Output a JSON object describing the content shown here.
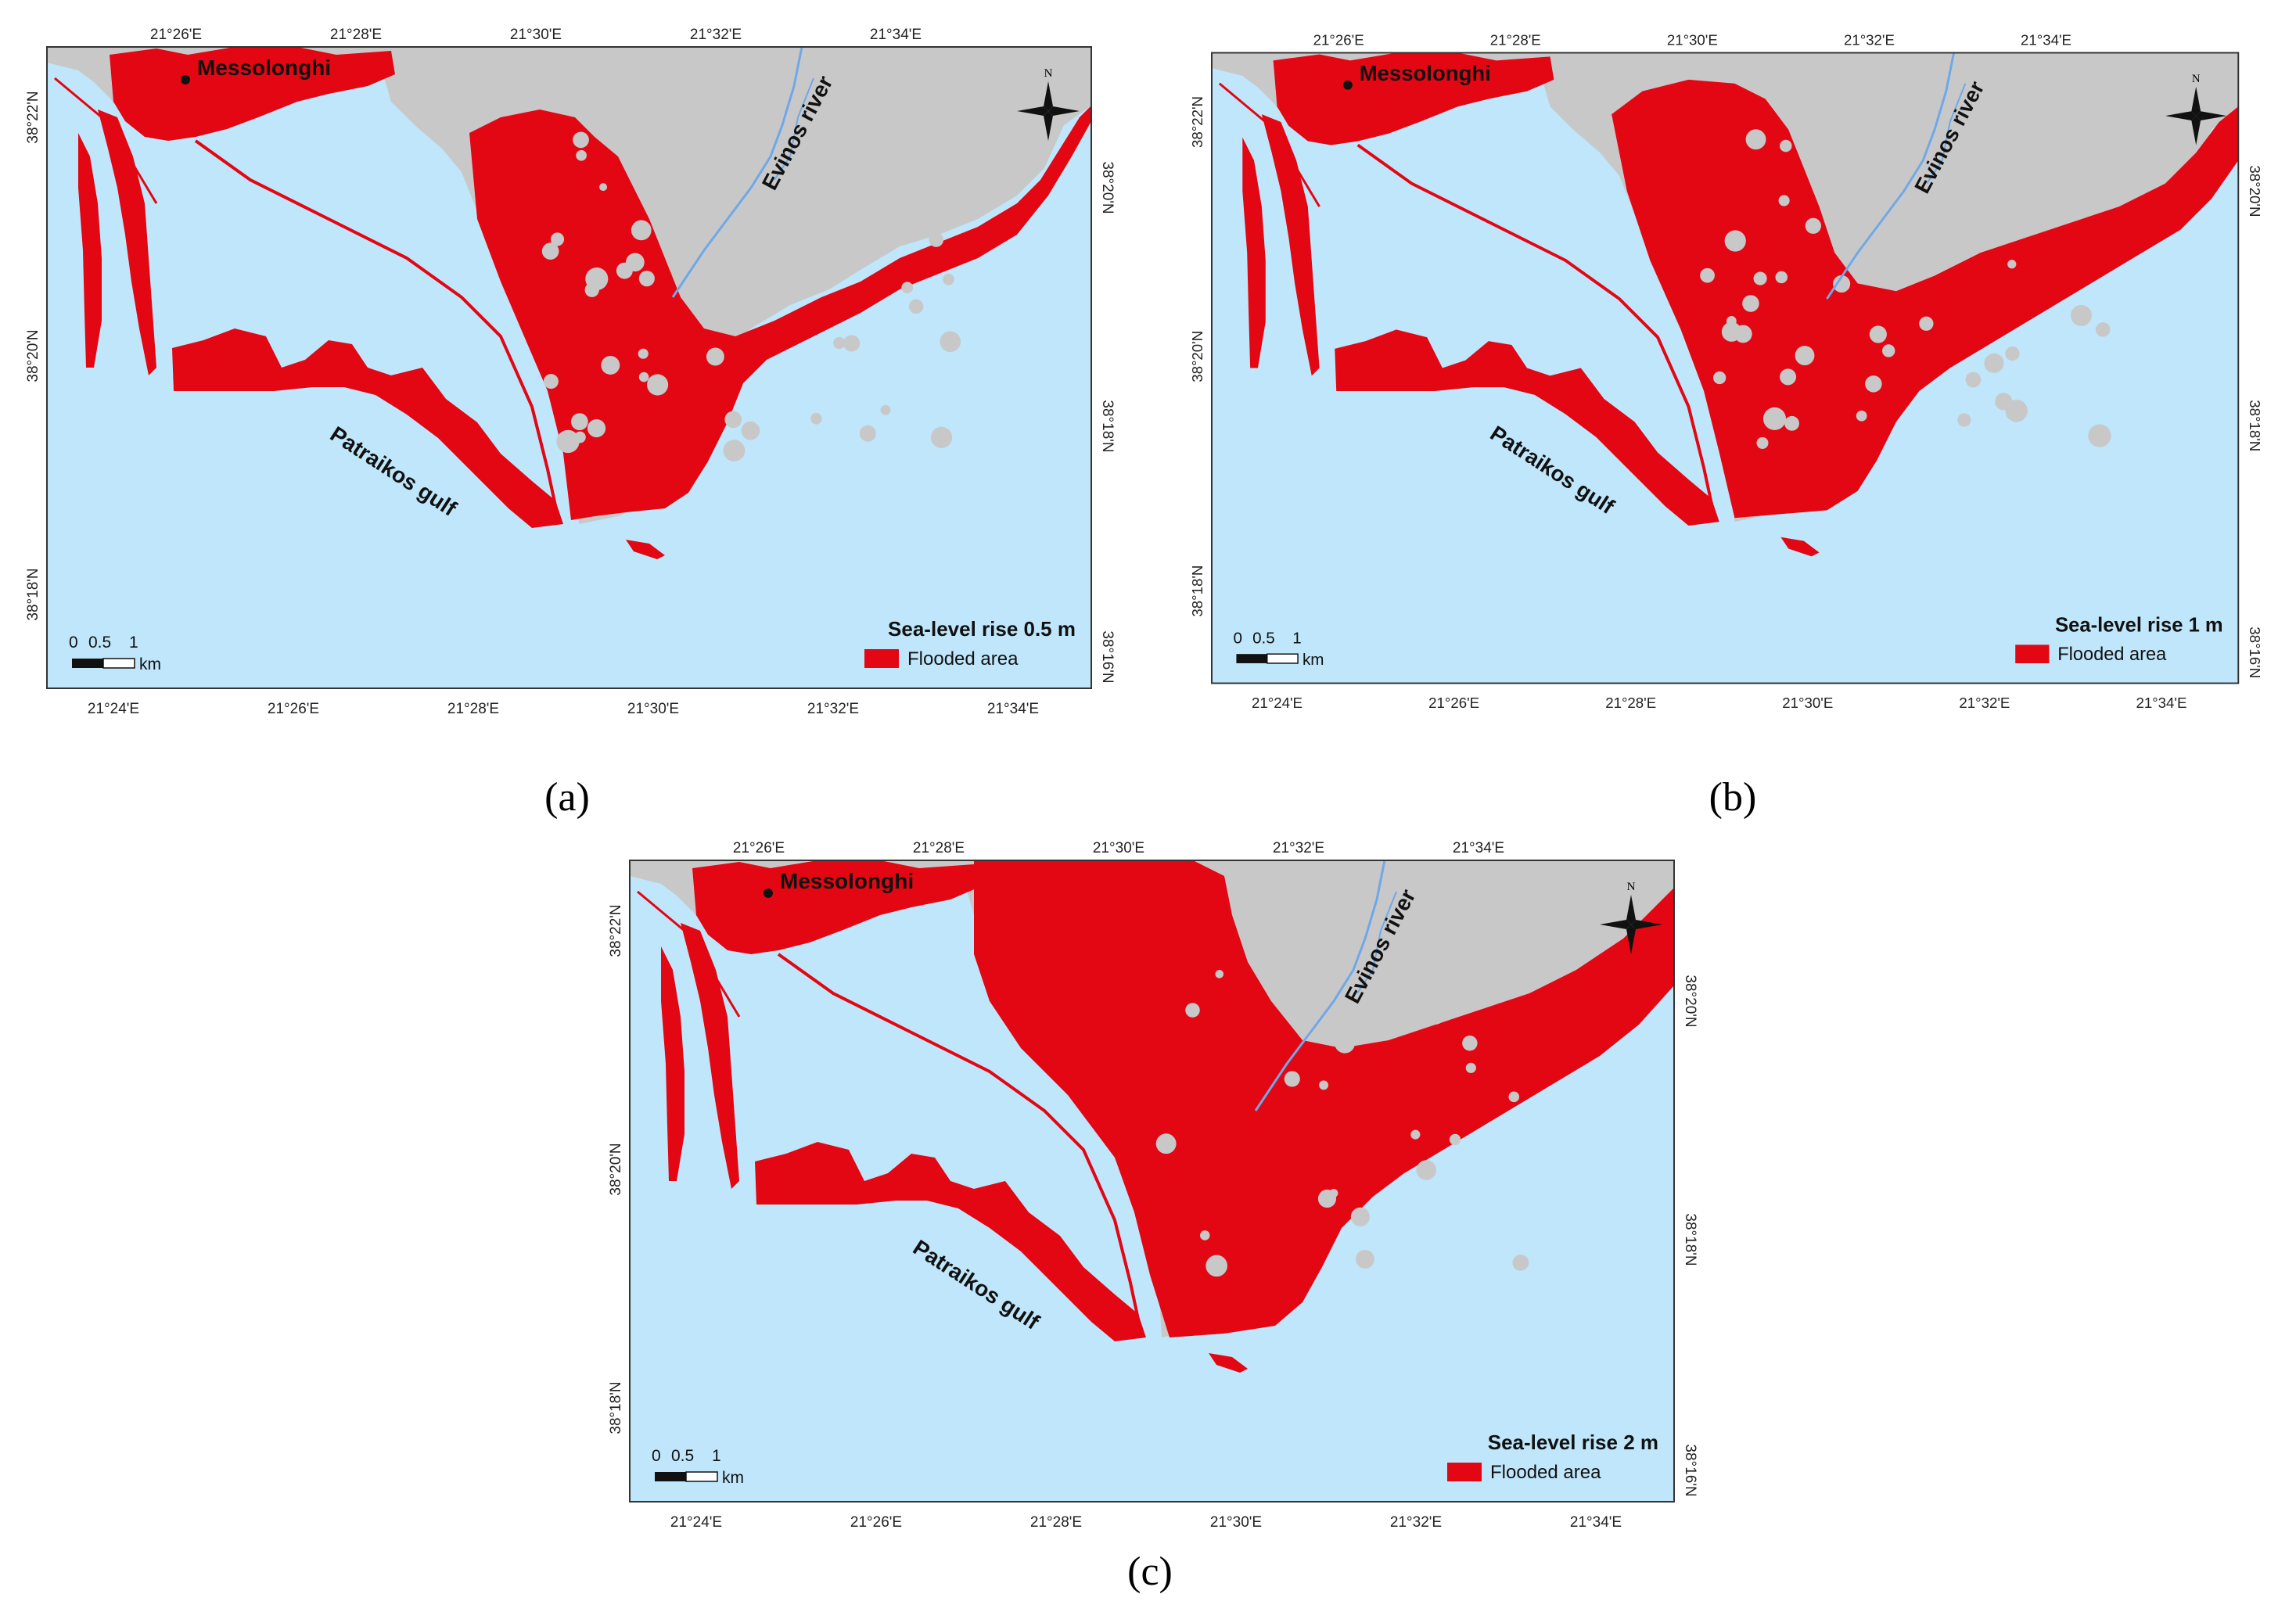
{
  "colors": {
    "sea": "#bfe6fa",
    "land": "#c8c8c8",
    "flooded": "#e30613",
    "river": "#6fa8e8",
    "frame": "#333333"
  },
  "labels": {
    "city": "Messolonghi",
    "river": "Evinos river",
    "gulf": "Patraikos gulf",
    "north": "N",
    "legend_item": "Flooded area",
    "scale_ticks": [
      "0",
      "0.5",
      "1"
    ],
    "scale_unit": "km"
  },
  "axis": {
    "top_ticks": [
      "21°26'E",
      "21°28'E",
      "21°30'E",
      "21°32'E",
      "21°34'E"
    ],
    "bottom_ticks": [
      "21°24'E",
      "21°26'E",
      "21°28'E",
      "21°30'E",
      "21°32'E",
      "21°34'E"
    ],
    "left_ticks": [
      "38°22'N",
      "38°20'N",
      "38°18'N"
    ],
    "right_ticks": [
      "38°20'N",
      "38°18'N",
      "38°16'N"
    ]
  },
  "panels": [
    {
      "id": "a",
      "caption": "(a)",
      "scenario": "Sea-level rise 0.5 m",
      "flood_level": 0
    },
    {
      "id": "b",
      "caption": "(b)",
      "scenario": "Sea-level rise 1 m",
      "flood_level": 1
    },
    {
      "id": "c",
      "caption": "(c)",
      "scenario": "Sea-level rise 2 m",
      "flood_level": 2
    }
  ]
}
